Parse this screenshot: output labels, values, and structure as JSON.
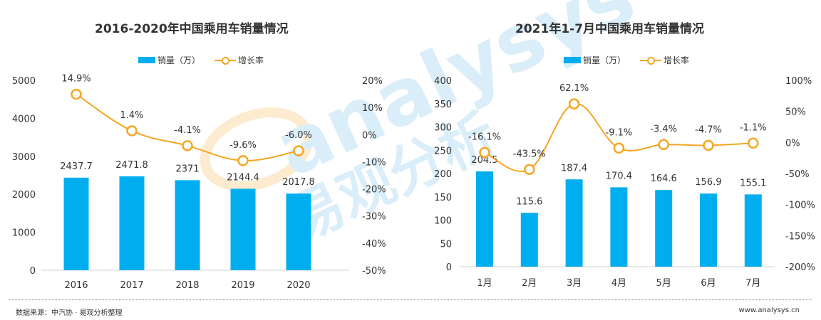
{
  "colors": {
    "bar": "#00AEEF",
    "line": "#F5A623",
    "text": "#333333",
    "axis": "#E0E0E0"
  },
  "watermark": {
    "latin": "analysys",
    "chinese": "易观分析"
  },
  "footer": {
    "source": "数据来源：中汽协 · 易观分析整理",
    "url": "www.analysys.cn"
  },
  "chart_data": [
    {
      "type": "bar",
      "title": "2016-2020年中国乘用车销量情况",
      "legend": {
        "bar_label": "销量（万）",
        "line_label": "增长率",
        "placement": "top-center"
      },
      "categories": [
        "2016",
        "2017",
        "2018",
        "2019",
        "2020"
      ],
      "series": [
        {
          "name": "销量（万）",
          "type": "bar",
          "axis": "left",
          "values": [
            2437.7,
            2471.8,
            2371,
            2144.4,
            2017.8
          ],
          "labels": [
            "2437.7",
            "2471.8",
            "2371",
            "2144.4",
            "2017.8"
          ]
        },
        {
          "name": "增长率",
          "type": "line",
          "axis": "right",
          "values": [
            14.9,
            1.4,
            -4.1,
            -9.6,
            -6.0
          ],
          "labels": [
            "14.9%",
            "1.4%",
            "-4.1%",
            "-9.6%",
            "-6.0%"
          ]
        }
      ],
      "ylim_left": [
        0,
        5000
      ],
      "yticks_left": [
        "0",
        "1000",
        "2000",
        "3000",
        "4000",
        "5000"
      ],
      "ylim_right": [
        -50,
        20
      ],
      "yticks_right": [
        "-50%",
        "-40%",
        "-30%",
        "-20%",
        "-10%",
        "0%",
        "10%",
        "20%"
      ],
      "xlabel": "",
      "ylabel": "",
      "grid": false
    },
    {
      "type": "bar",
      "title": "2021年1-7月中国乘用车销量情况",
      "legend": {
        "bar_label": "销量（万）",
        "line_label": "增长率",
        "placement": "top-center"
      },
      "categories": [
        "1月",
        "2月",
        "3月",
        "4月",
        "5月",
        "6月",
        "7月"
      ],
      "series": [
        {
          "name": "销量（万）",
          "type": "bar",
          "axis": "left",
          "values": [
            204.5,
            115.6,
            187.4,
            170.4,
            164.6,
            156.9,
            155.1
          ],
          "labels": [
            "204.5",
            "115.6",
            "187.4",
            "170.4",
            "164.6",
            "156.9",
            "155.1"
          ]
        },
        {
          "name": "增长率",
          "type": "line",
          "axis": "right",
          "values": [
            -16.1,
            -43.5,
            62.1,
            -9.1,
            -3.4,
            -4.7,
            -1.1
          ],
          "labels": [
            "-16.1%",
            "-43.5%",
            "62.1%",
            "-9.1%",
            "-3.4%",
            "-4.7%",
            "-1.1%"
          ]
        }
      ],
      "ylim_left": [
        0,
        400
      ],
      "yticks_left": [
        "0",
        "50",
        "100",
        "150",
        "200",
        "250",
        "300",
        "350",
        "400"
      ],
      "ylim_right": [
        -200,
        100
      ],
      "yticks_right": [
        "-200%",
        "-150%",
        "-100%",
        "-50%",
        "0%",
        "50%",
        "100%"
      ],
      "xlabel": "",
      "ylabel": "",
      "grid": false
    }
  ]
}
